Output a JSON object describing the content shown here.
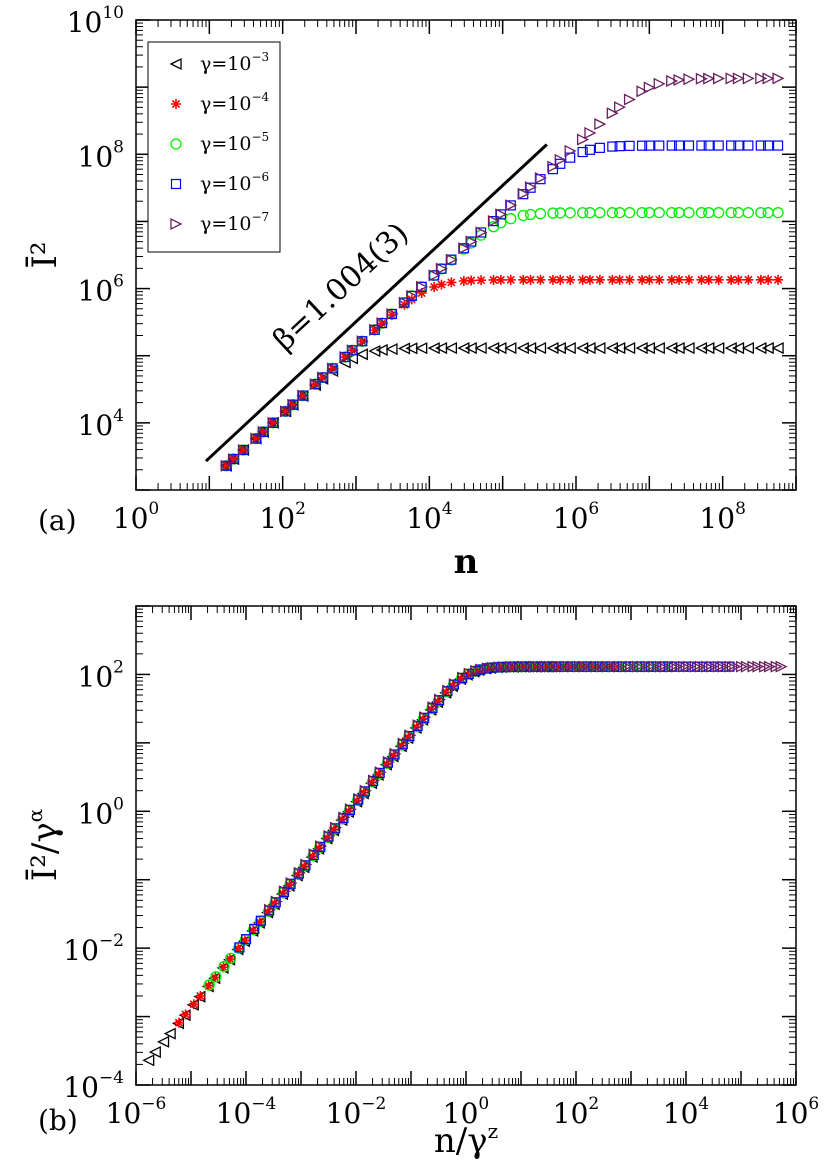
{
  "chart_data": [
    {
      "id": "a",
      "type": "scatter",
      "panel_label": "(a)",
      "xscale": "log",
      "yscale": "log",
      "xlabel": "n",
      "ylabel": "Ī²",
      "xlim": [
        1,
        1000000000
      ],
      "ylim": [
        1000,
        10000000000
      ],
      "xticks": [
        {
          "base": "10",
          "exp": "0",
          "value": 1
        },
        {
          "base": "10",
          "exp": "2",
          "value": 100
        },
        {
          "base": "10",
          "exp": "4",
          "value": 10000
        },
        {
          "base": "10",
          "exp": "6",
          "value": 1000000
        },
        {
          "base": "10",
          "exp": "8",
          "value": 100000000
        }
      ],
      "yticks": [
        {
          "base": "10",
          "exp": "4",
          "value": 10000
        },
        {
          "base": "10",
          "exp": "6",
          "value": 1000000
        },
        {
          "base": "10",
          "exp": "8",
          "value": 100000000
        },
        {
          "base": "10",
          "exp": "10",
          "value": 10000000000
        }
      ],
      "legend": {
        "position": "top-left"
      },
      "series": [
        {
          "name": "γ=10",
          "exp": "−3",
          "marker": "triangle-left",
          "color": "#000000",
          "plateau": 130000
        },
        {
          "name": "γ=10",
          "exp": "−4",
          "marker": "star",
          "color": "#ff0000",
          "plateau": 1350000
        },
        {
          "name": "γ=10",
          "exp": "−5",
          "marker": "circle",
          "color": "#00ee00",
          "plateau": 13500000
        },
        {
          "name": "γ=10",
          "exp": "−6",
          "marker": "square",
          "color": "#0000ff",
          "plateau": 135000000
        },
        {
          "name": "γ=10",
          "exp": "−7",
          "marker": "triangle-right",
          "color": "#6b1f5e",
          "plateau": 1350000000
        }
      ],
      "growth": {
        "prefactor": 135,
        "exponent": 1.0,
        "x_start": 17,
        "x_end": 700000000
      },
      "fit_line": {
        "label": "β=1.004(3)",
        "slope": 1.004,
        "x": [
          9,
          400000
        ],
        "y": [
          2700,
          140000000
        ]
      }
    },
    {
      "id": "b",
      "type": "scatter",
      "panel_label": "(b)",
      "xscale": "log",
      "yscale": "log",
      "xlabel": "n/γ",
      "xlabel_sup": "z",
      "ylabel": "Ī²/γ",
      "ylabel_sup": "α",
      "xlim": [
        1e-06,
        1000000
      ],
      "ylim": [
        0.0001,
        1000
      ],
      "xticks": [
        {
          "base": "10",
          "exp": "-6",
          "value": 1e-06
        },
        {
          "base": "10",
          "exp": "-4",
          "value": 0.0001
        },
        {
          "base": "10",
          "exp": "-2",
          "value": 0.01
        },
        {
          "base": "10",
          "exp": "0",
          "value": 1
        },
        {
          "base": "10",
          "exp": "2",
          "value": 100
        },
        {
          "base": "10",
          "exp": "4",
          "value": 10000
        },
        {
          "base": "10",
          "exp": "6",
          "value": 1000000
        }
      ],
      "yticks": [
        {
          "base": "10",
          "exp": "-4",
          "value": 0.0001
        },
        {
          "base": "10",
          "exp": "-2",
          "value": 0.01
        },
        {
          "base": "10",
          "exp": "0",
          "value": 1
        },
        {
          "base": "10",
          "exp": "2",
          "value": 100
        }
      ],
      "collapse": {
        "plateau": 130,
        "prefactor": 135,
        "exponent": 1.0,
        "x_min": 1.7e-06,
        "x_max": 700000
      }
    }
  ]
}
